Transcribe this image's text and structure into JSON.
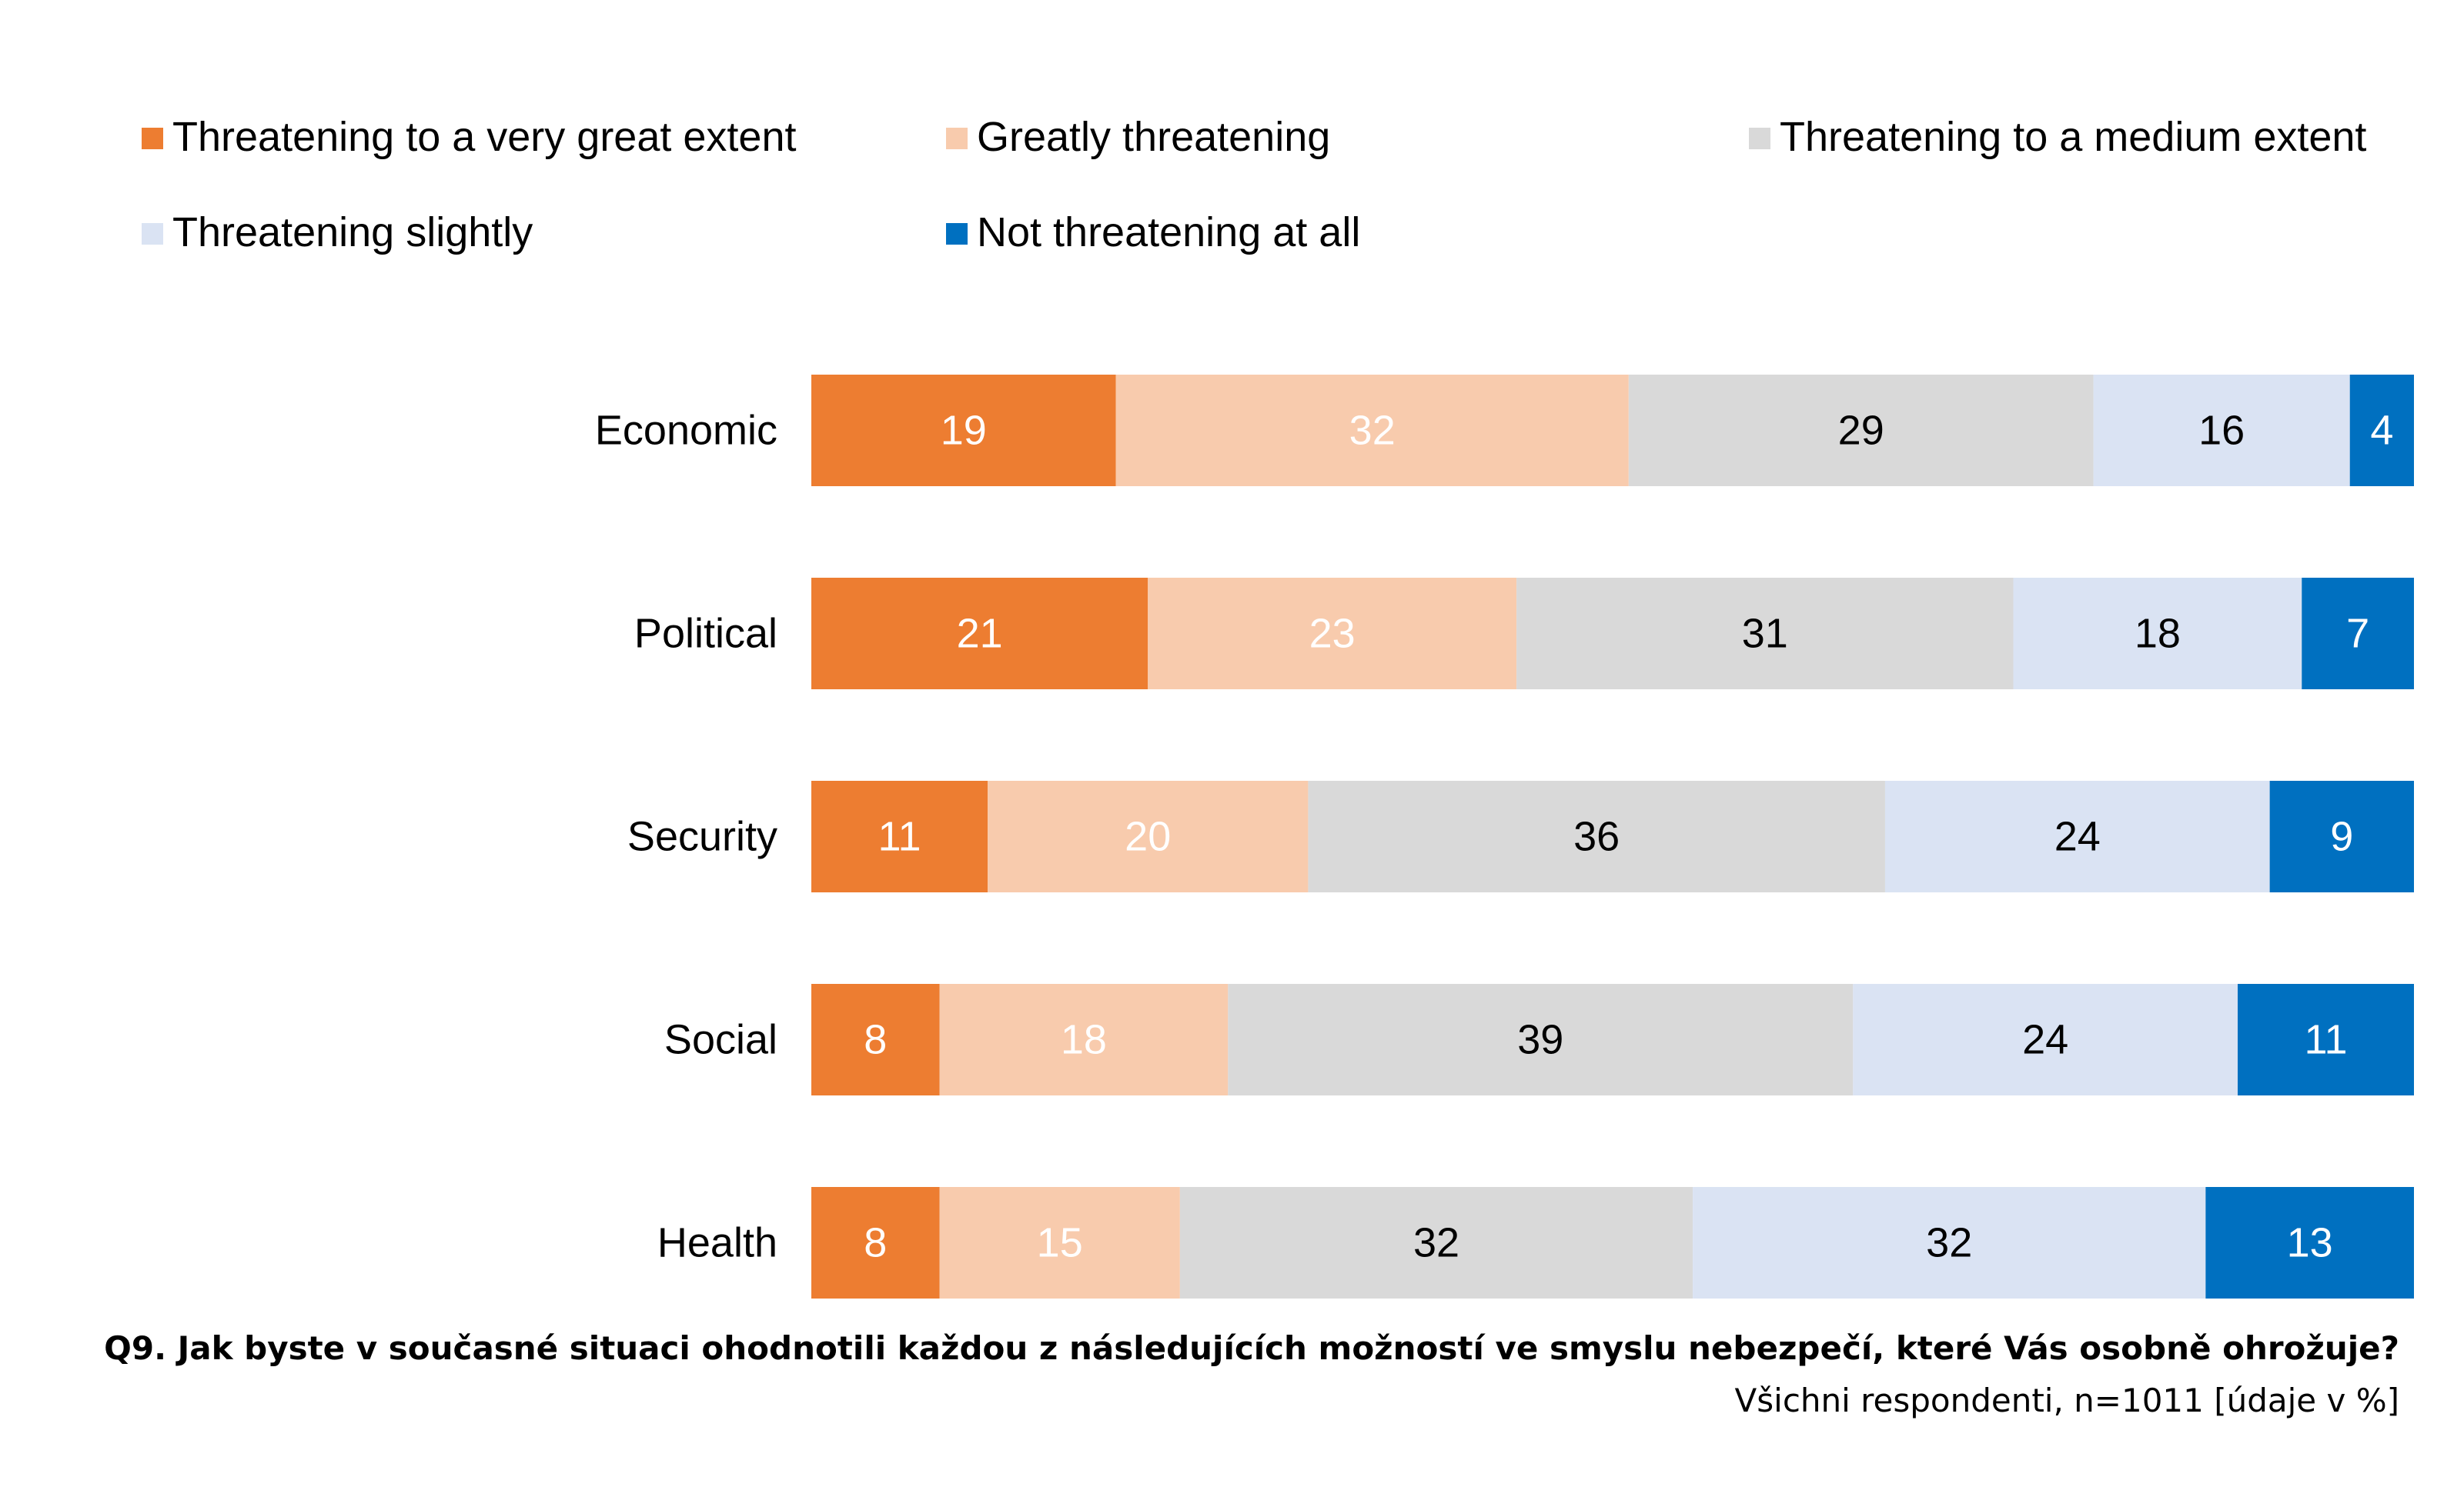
{
  "chart_data": {
    "type": "bar",
    "orientation": "horizontal",
    "stacked": true,
    "normalized_percent": true,
    "categories": [
      "Economic",
      "Political",
      "Security",
      "Social",
      "Health"
    ],
    "series": [
      {
        "name": "Threatening to a very great extent",
        "color": "#ED7D31",
        "label_color": "#ffffff",
        "values": [
          19,
          21,
          11,
          8,
          8
        ]
      },
      {
        "name": "Greatly threatening",
        "color": "#F8CBAD",
        "label_color": "#ffffff",
        "values": [
          32,
          23,
          20,
          18,
          15
        ]
      },
      {
        "name": "Threatening to a medium extent",
        "color": "#D9D9D9",
        "label_color": "#000000",
        "values": [
          29,
          31,
          36,
          39,
          32
        ]
      },
      {
        "name": "Threatening slightly",
        "color": "#DAE3F3",
        "label_color": "#000000",
        "values": [
          16,
          18,
          24,
          24,
          32
        ]
      },
      {
        "name": "Not threatening at all",
        "color": "#0070C0",
        "label_color": "#ffffff",
        "values": [
          4,
          7,
          9,
          11,
          13
        ]
      }
    ],
    "legend_position": "top",
    "grid": false,
    "data_labels": true
  },
  "footnote": {
    "question": "Q9. Jak byste v současné situaci ohodnotili každou z následujících možností ve smyslu nebezpečí, které Vás osobně ohrožuje?",
    "note": "Všichni respondenti, n=1011 [údaje v %]"
  }
}
